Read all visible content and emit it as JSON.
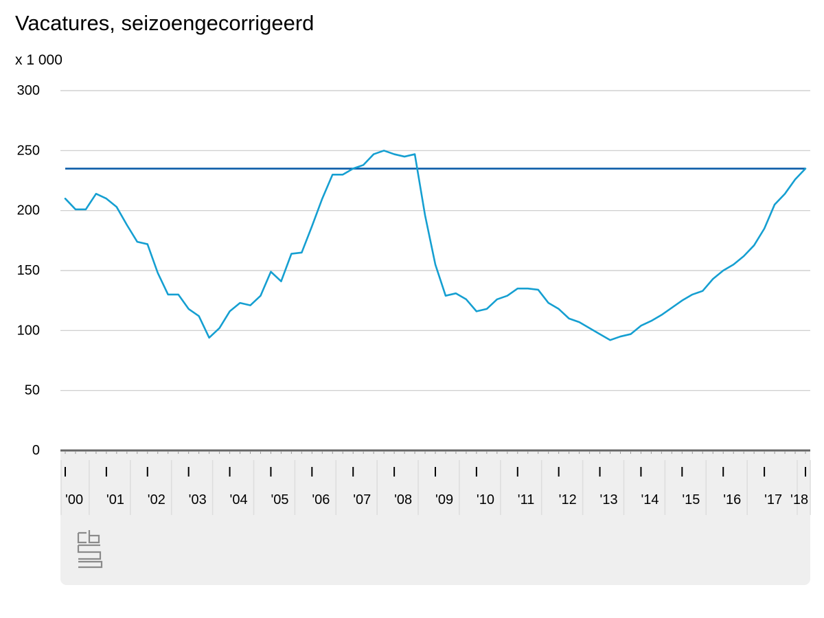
{
  "chart_data": {
    "type": "line",
    "title": "Vacatures, seizoengecorrigeerd",
    "unit_label": "x 1 000",
    "xlabel": "",
    "ylabel": "",
    "ylim": [
      0,
      300
    ],
    "y_ticks": [
      "0",
      "50",
      "100",
      "150",
      "200",
      "250",
      "300"
    ],
    "x_tick_labels": [
      "'00",
      "'01",
      "'02",
      "'03",
      "'04",
      "'05",
      "'06",
      "'07",
      "'08",
      "'09",
      "'10",
      "'11",
      "'12",
      "'13",
      "'14",
      "'15",
      "'16",
      "'17",
      "'18"
    ],
    "x_unit": "quarter",
    "x_start": "2000 Q1",
    "x_end": "2018 Q1",
    "grid": true,
    "legend": "none",
    "series": [
      {
        "color": "#159fd1",
        "values": [
          210,
          201,
          201,
          214,
          210,
          203,
          188,
          174,
          172,
          148,
          130,
          130,
          118,
          112,
          94,
          102,
          116,
          123,
          121,
          129,
          149,
          141,
          164,
          165,
          187,
          210,
          230,
          230,
          235,
          238,
          247,
          250,
          247,
          245,
          247,
          196,
          155,
          129,
          131,
          126,
          116,
          118,
          126,
          129,
          135,
          135,
          134,
          123,
          118,
          110,
          107,
          102,
          97,
          92,
          95,
          97,
          104,
          108,
          113,
          119,
          125,
          130,
          133,
          143,
          150,
          155,
          162,
          171,
          185,
          205,
          214,
          226,
          235
        ]
      }
    ],
    "reference_line": {
      "value": 235,
      "color": "#0a5ba8"
    }
  },
  "logo": {
    "name": "cbs",
    "color": "#8a8a8a"
  },
  "colors": {
    "gridline": "#c8c8c8",
    "axis": "#666666",
    "panel": "#efefef",
    "panel_divider": "#dddddd"
  }
}
